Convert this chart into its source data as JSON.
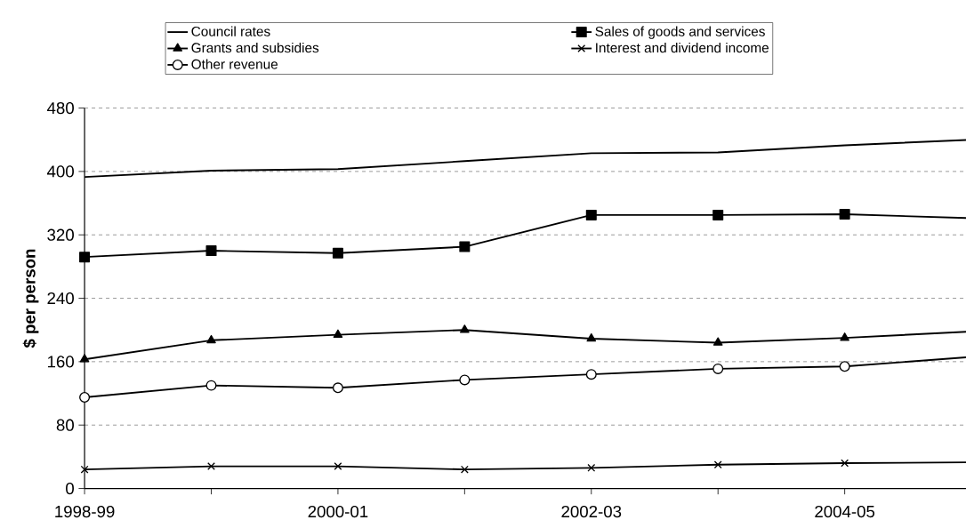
{
  "chart_data": {
    "type": "line",
    "ylabel": "$ per person",
    "categories": [
      "1998-99",
      null,
      "2000-01",
      null,
      "2002-03",
      null,
      "2004-05",
      null
    ],
    "series": [
      {
        "name": "Council rates",
        "color": "#000000",
        "marker": "none",
        "values": [
          393,
          401,
          403,
          413,
          423,
          424,
          433,
          440
        ]
      },
      {
        "name": "Sales of goods and services",
        "color": "#000000",
        "marker": "square",
        "values": [
          292,
          300,
          297,
          305,
          345,
          345,
          346,
          341
        ]
      },
      {
        "name": "Grants and subsidies",
        "color": "#000000",
        "marker": "triangle",
        "values": [
          163,
          187,
          194,
          200,
          189,
          184,
          190,
          198
        ]
      },
      {
        "name": "Interest and dividend income",
        "color": "#000000",
        "marker": "cross",
        "values": [
          24,
          28,
          28,
          24,
          26,
          30,
          32,
          33
        ]
      },
      {
        "name": "Other revenue",
        "color": "#000000",
        "marker": "circle",
        "values": [
          115,
          130,
          127,
          137,
          144,
          151,
          154,
          166
        ]
      }
    ],
    "ylim": [
      0,
      480
    ],
    "yticks": [
      0,
      80,
      160,
      240,
      320,
      400,
      480
    ],
    "grid": "y",
    "legend": "top",
    "line_style": "solid"
  }
}
